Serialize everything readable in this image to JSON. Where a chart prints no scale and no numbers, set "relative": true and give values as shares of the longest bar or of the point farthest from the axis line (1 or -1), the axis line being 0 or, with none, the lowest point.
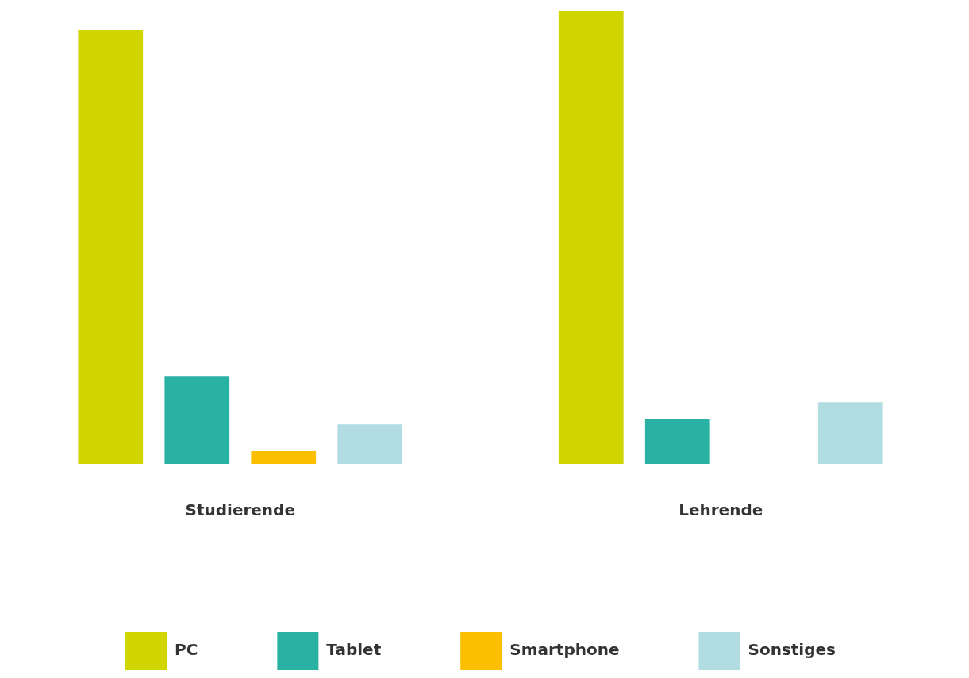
{
  "chart_data": {
    "type": "bar",
    "relative": true,
    "categories": [
      "Studierende",
      "Lehrende"
    ],
    "series": [
      {
        "name": "PC",
        "color": "#d0d500",
        "values": [
          0.958,
          1
        ]
      },
      {
        "name": "Tablet",
        "color": "#29b1a4",
        "values": [
          0.194,
          0.098
        ]
      },
      {
        "name": "Smartphone",
        "color": "#fbbf00",
        "values": [
          0.028,
          0
        ]
      },
      {
        "name": "Sonstiges",
        "color": "#b0dce2",
        "values": [
          0.087,
          0.136
        ]
      }
    ],
    "legend": "bottom",
    "grid": false
  }
}
